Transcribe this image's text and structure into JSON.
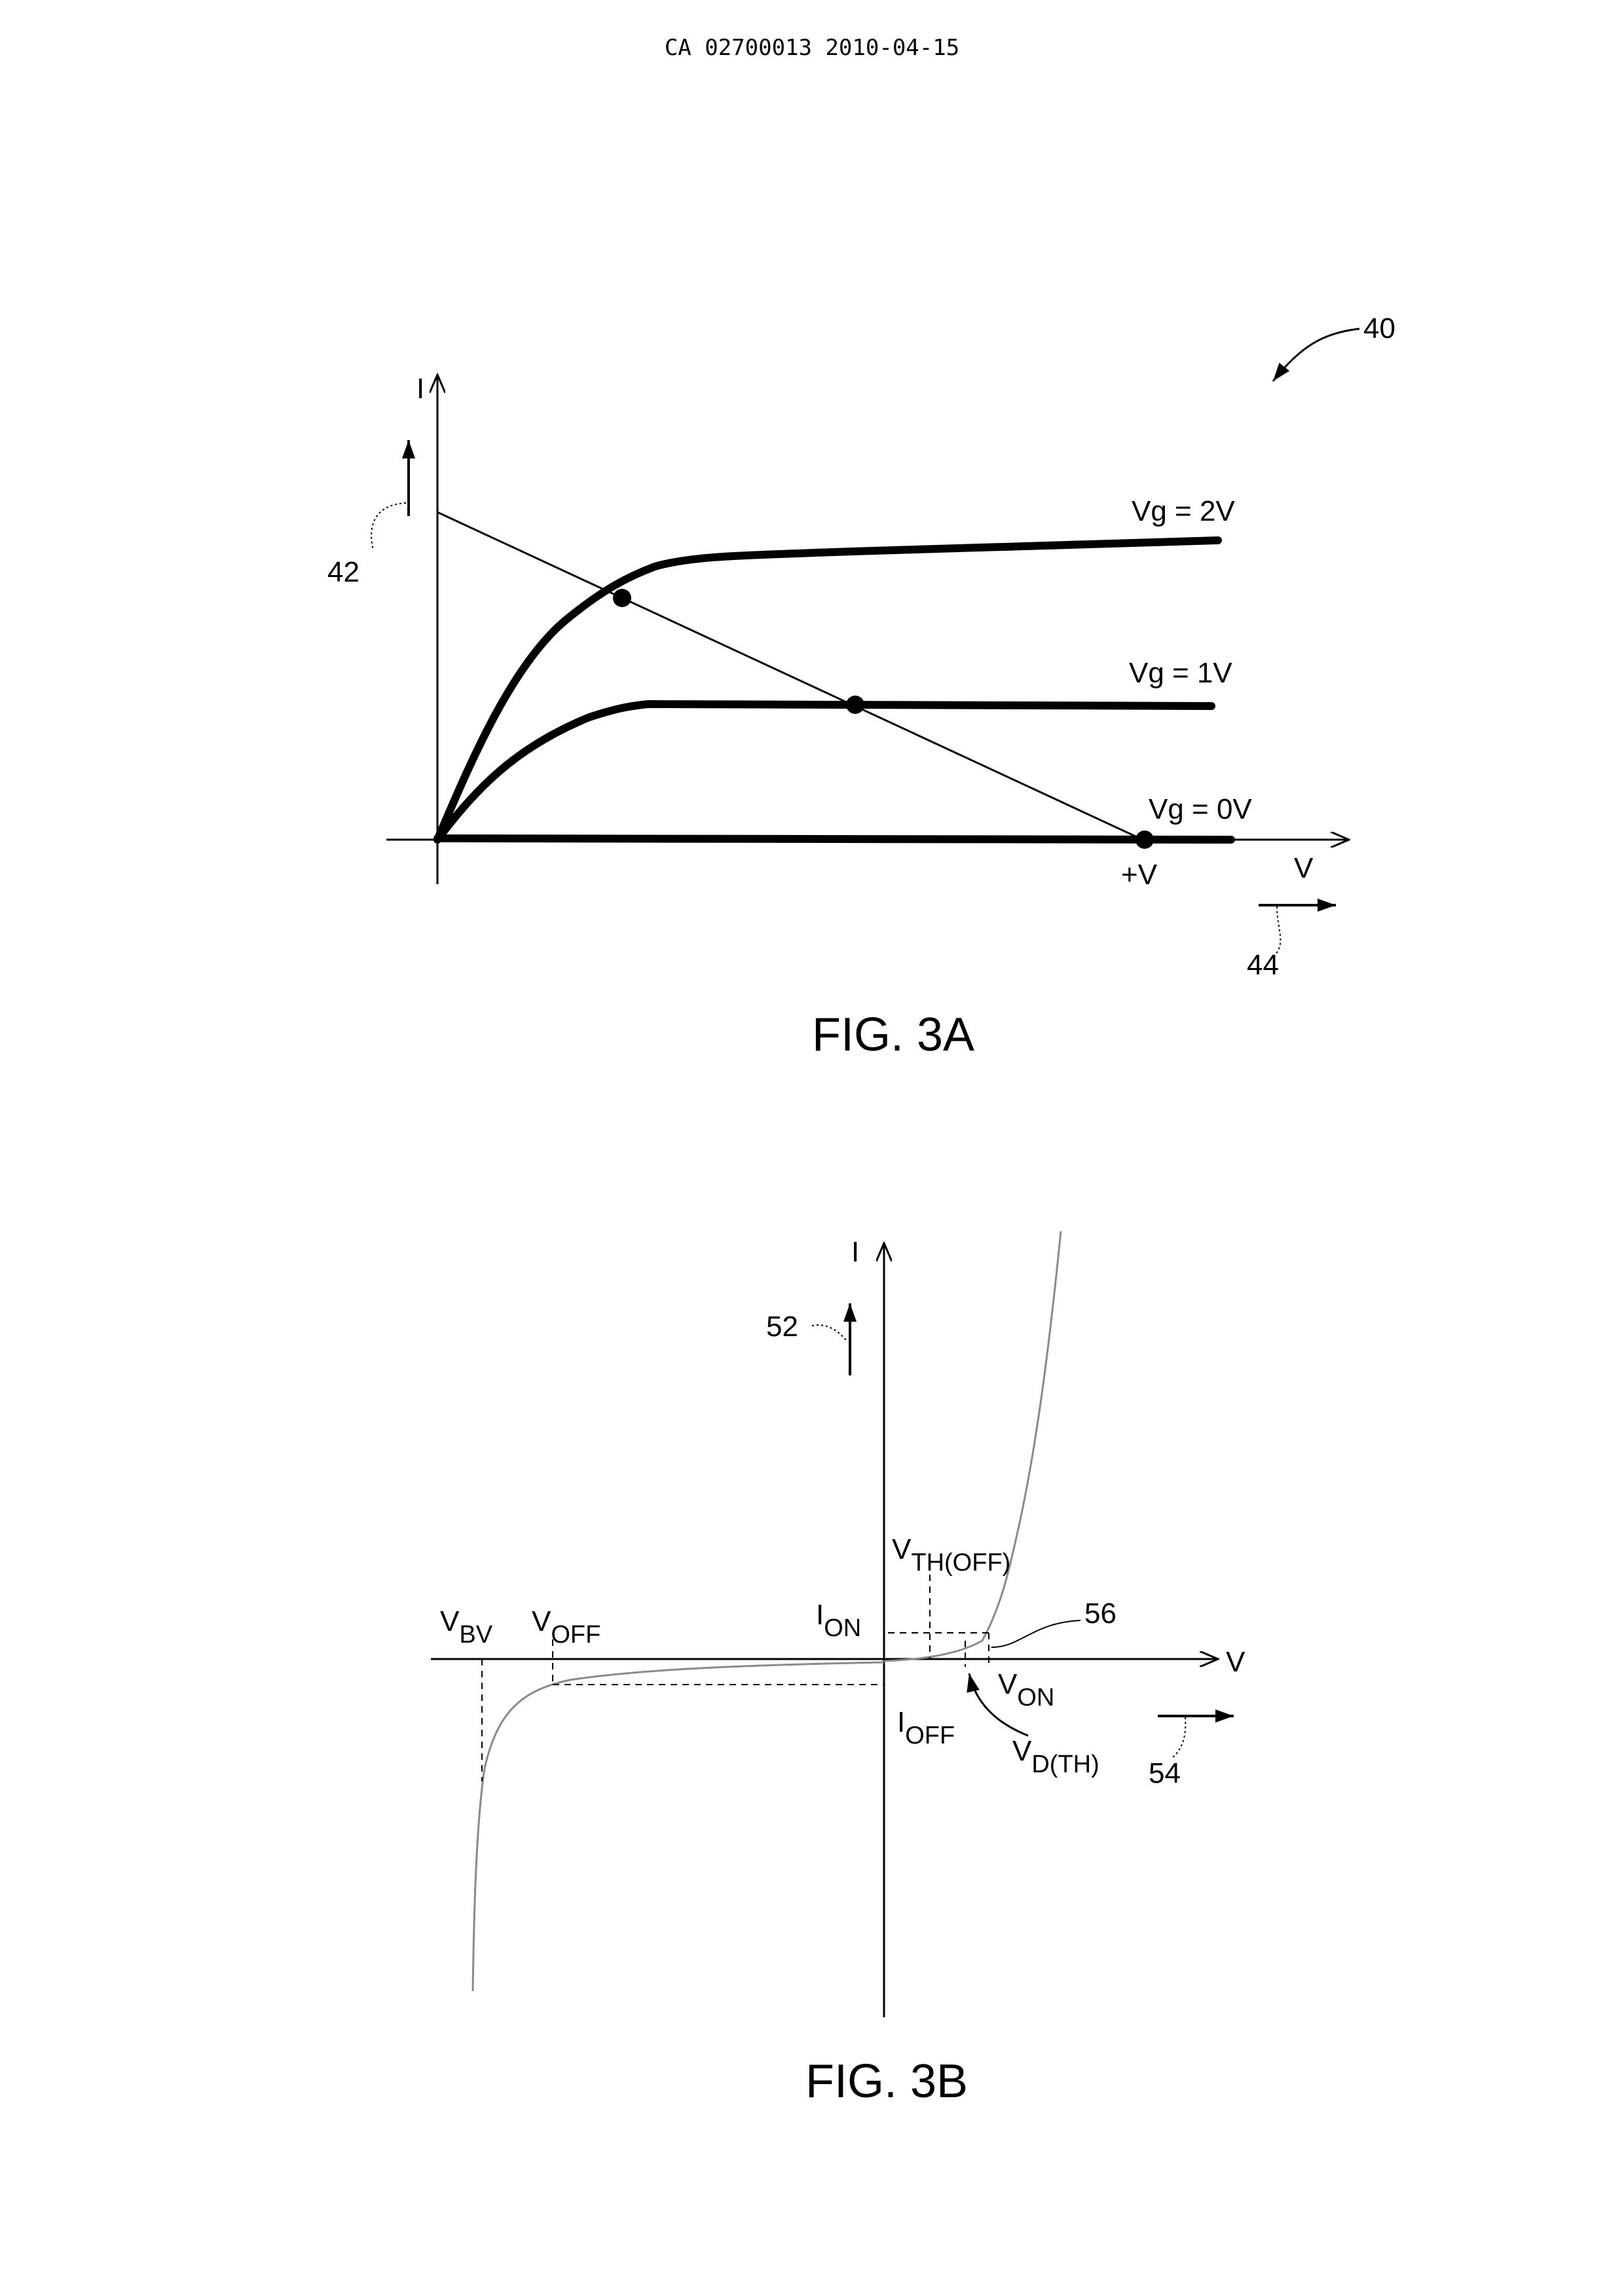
{
  "header": {
    "doc_id": "CA 02700013 2010-04-15"
  },
  "fig3a": {
    "caption": "FIG. 3A",
    "ref_figure": "40",
    "ref_current_arrow": "42",
    "ref_voltage_arrow": "44",
    "axis_i": "I",
    "axis_v": "V",
    "supply_label": "+V",
    "curves": [
      "Vg = 2V",
      "Vg = 1V",
      "Vg = 0V"
    ]
  },
  "fig3b": {
    "caption": "FIG. 3B",
    "ref_current_arrow": "52",
    "ref_voltage_arrow": "54",
    "ref_knee": "56",
    "axis_i": "I",
    "axis_v": "V",
    "vbv": {
      "main": "V",
      "sub": "BV"
    },
    "voff": {
      "main": "V",
      "sub": "OFF"
    },
    "ion": {
      "main": "I",
      "sub": "ON"
    },
    "ioff": {
      "main": "I",
      "sub": "OFF"
    },
    "von": {
      "main": "V",
      "sub": "ON"
    },
    "vth_off": {
      "main": "V",
      "sub": "TH(OFF)"
    },
    "vd_th": {
      "main": "V",
      "sub": "D(TH)"
    }
  }
}
